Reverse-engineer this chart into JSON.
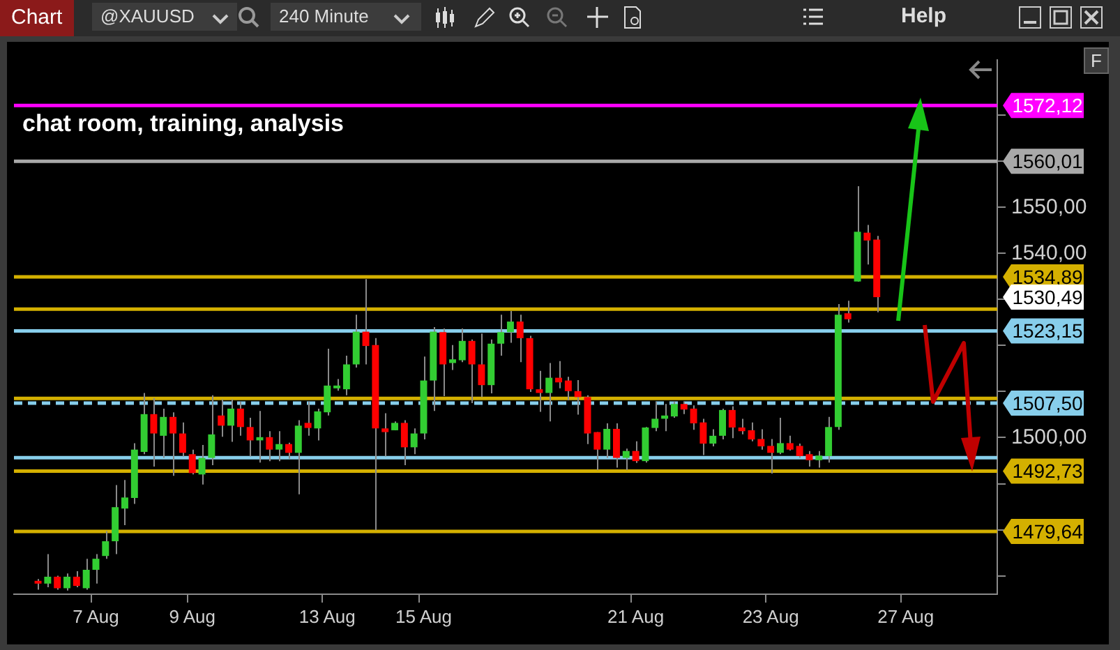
{
  "chart_data": {
    "type": "candlestick",
    "subtitle": "chat room, training, analysis",
    "categories": [
      null,
      null,
      null,
      null,
      null,
      null,
      null,
      null,
      "7 Aug",
      null,
      null,
      null,
      null,
      null,
      null,
      null,
      null,
      null,
      "9 Aug",
      null,
      null,
      null,
      null,
      null,
      null,
      null,
      null,
      null,
      null,
      null,
      null,
      null,
      "13 Aug",
      null,
      null,
      null,
      null,
      null,
      null,
      null,
      null,
      null,
      "15 Aug",
      null,
      null,
      null,
      null,
      null,
      null,
      null,
      null,
      null,
      null,
      null,
      null,
      null,
      null,
      null,
      null,
      null,
      null,
      null,
      null,
      null,
      "21 Aug",
      null,
      null,
      null,
      null,
      null,
      null,
      null,
      null,
      null,
      null,
      null,
      null,
      null,
      "23 Aug",
      null,
      null,
      null,
      null,
      null,
      null,
      null,
      null,
      null,
      null,
      null,
      null,
      null,
      "27 Aug",
      null,
      null,
      null,
      null,
      null,
      null,
      null,
      null,
      null
    ],
    "ohlc": [
      null,
      null,
      [
        1468.5,
        1469.3,
        1467,
        1468.3
      ],
      [
        1468.3,
        1474.7,
        1467.5,
        1469.8
      ],
      [
        1469.8,
        1470,
        1467,
        1467.3
      ],
      [
        1467.3,
        1470.5,
        1466.8,
        1469.8
      ],
      [
        1469.8,
        1471,
        1467.5,
        1467.8
      ],
      [
        1467.3,
        1473.7,
        1467,
        1471.3
      ],
      [
        1471.3,
        1474.7,
        1468.3,
        1473.7
      ],
      [
        1474.3,
        1479.7,
        1473.7,
        1477.5
      ],
      [
        1477.5,
        1489.7,
        1474.7,
        1484.9
      ],
      [
        1484.6,
        1490.8,
        1481,
        1487
      ],
      [
        1486.9,
        1498.8,
        1485.6,
        1497.4
      ],
      [
        1496.9,
        1509.7,
        1496.4,
        1505.1
      ],
      [
        1505.1,
        1508.6,
        1493.7,
        1500.9
      ],
      [
        1500.4,
        1506.3,
        1495.6,
        1504.5
      ],
      [
        1504.5,
        1505.5,
        1491.7,
        1500.9
      ],
      [
        1500.9,
        1503.3,
        1495.9,
        1496.7
      ],
      [
        1496.4,
        1497.4,
        1492,
        1492.3
      ],
      [
        1492,
        1498.4,
        1489.8,
        1495.6
      ],
      [
        1495.6,
        1509.2,
        1494,
        1500.7
      ],
      [
        1504.8,
        1508.3,
        1500.2,
        1502.6
      ],
      [
        1502.6,
        1508.3,
        1499.1,
        1506.3
      ],
      [
        1506.3,
        1507.8,
        1500.4,
        1502.3
      ],
      [
        1502.3,
        1504.3,
        1495.9,
        1499.4
      ],
      [
        1499.4,
        1505.8,
        1494.6,
        1500.1
      ],
      [
        1500.1,
        1501.4,
        1494.9,
        1497.4
      ],
      [
        1497.4,
        1501.4,
        1494.9,
        1498.6
      ],
      [
        1498.6,
        1498.9,
        1495.4,
        1496.7
      ],
      [
        1496.7,
        1503.8,
        1487.7,
        1502.6
      ],
      [
        1503.2,
        1507.8,
        1500.4,
        1502.1
      ],
      [
        1502,
        1506.3,
        1499.4,
        1505.7
      ],
      [
        1505.5,
        1519.3,
        1504.8,
        1511.3
      ],
      [
        1510.7,
        1512.7,
        1510.2,
        1510.8
      ],
      [
        1510.5,
        1517.8,
        1509.2,
        1515.9
      ],
      [
        1515.9,
        1526.7,
        1515.2,
        1523
      ],
      [
        1523,
        1534.4,
        1515.9,
        1519.9
      ],
      [
        1520.1,
        1521.6,
        1479.9,
        1502
      ],
      [
        1502,
        1505.3,
        1495.9,
        1501.2
      ],
      [
        1501.6,
        1503.5,
        1501.6,
        1503.2
      ],
      [
        1503.2,
        1503.8,
        1494,
        1497.9
      ],
      [
        1497.9,
        1502,
        1496.4,
        1500.9
      ],
      [
        1500.9,
        1517.6,
        1499.6,
        1512.4
      ],
      [
        1512.4,
        1524,
        1505.8,
        1523
      ],
      [
        1522.9,
        1523.7,
        1509,
        1515.9
      ],
      [
        1516.2,
        1520.1,
        1514.7,
        1517
      ],
      [
        1516.8,
        1523.7,
        1516.4,
        1521
      ],
      [
        1521,
        1521.3,
        1507.5,
        1515.9
      ],
      [
        1515.9,
        1522.6,
        1508.8,
        1511.4
      ],
      [
        1511.4,
        1521.3,
        1509.6,
        1520.4
      ],
      [
        1520.4,
        1526.7,
        1517.8,
        1522.9
      ],
      [
        1522.9,
        1527.5,
        1520.6,
        1525.2
      ],
      [
        1525.2,
        1526.7,
        1516.4,
        1521.6
      ],
      [
        1521.6,
        1522.1,
        1509.9,
        1510.5
      ],
      [
        1510.5,
        1514.5,
        1505.6,
        1509.7
      ],
      [
        1509.7,
        1516.2,
        1503.5,
        1513
      ],
      [
        1513,
        1516.6,
        1510.7,
        1512
      ],
      [
        1512.4,
        1513.2,
        1508.1,
        1510.1
      ],
      [
        1510.1,
        1512.5,
        1505,
        1508.8
      ],
      [
        1508.8,
        1509.2,
        1498.6,
        1500.9
      ],
      [
        1501.2,
        1501.2,
        1493,
        1497.4
      ],
      [
        1497.4,
        1503.1,
        1495.6,
        1501.9
      ],
      [
        1501.9,
        1503.1,
        1493.5,
        1495.6
      ],
      [
        1495.6,
        1497.6,
        1493,
        1497.1
      ],
      [
        1497.1,
        1499.2,
        1494.5,
        1494.9
      ],
      [
        1494.9,
        1502.3,
        1494.6,
        1502.2
      ],
      [
        1502.1,
        1507.8,
        1501.4,
        1504.1
      ],
      [
        1504.1,
        1507.3,
        1501.4,
        1504.8
      ],
      [
        1504.6,
        1507.8,
        1504.3,
        1507.3
      ],
      [
        1507.3,
        1507.8,
        1505.1,
        1506.1
      ],
      [
        1506.3,
        1507,
        1501.7,
        1503.1
      ],
      [
        1503.3,
        1504.1,
        1496.2,
        1498.7
      ],
      [
        1498.7,
        1501.8,
        1498.1,
        1500.4
      ],
      [
        1500.4,
        1506.3,
        1499.6,
        1506
      ],
      [
        1506,
        1506.8,
        1499.9,
        1502.2
      ],
      [
        1502.2,
        1504.1,
        1500.7,
        1501.4
      ],
      [
        1501.6,
        1503.3,
        1499.2,
        1499.6
      ],
      [
        1499.7,
        1501.8,
        1497.4,
        1498.1
      ],
      [
        1498.2,
        1499.7,
        1492.2,
        1496.7
      ],
      [
        1496.7,
        1504.3,
        1496.4,
        1498.8
      ],
      [
        1498.8,
        1500.4,
        1497.2,
        1497.4
      ],
      [
        1498.2,
        1498.7,
        1495.6,
        1496
      ],
      [
        1496.4,
        1497.1,
        1493.7,
        1495.1
      ],
      [
        1495.1,
        1497.1,
        1493.5,
        1496.1
      ],
      [
        1496,
        1504.5,
        1494.6,
        1502.3
      ],
      [
        1502.3,
        1529,
        1501.7,
        1526.7
      ],
      [
        1527,
        1529.7,
        1525,
        1525.7
      ],
      [
        1533.9,
        1554.6,
        1533.9,
        1544.7
      ],
      [
        1544.5,
        1546.2,
        1537.6,
        1542.8
      ],
      [
        1543,
        1543.8,
        1527.2,
        1530.5
      ],
      null,
      null,
      null,
      null,
      null,
      null,
      null,
      null,
      null,
      null,
      null,
      null
    ],
    "colors": [
      null,
      null,
      "#ff0000",
      "#32cd32",
      "#ff0000",
      "#32cd32",
      "#ff0000",
      "#32cd32",
      "#32cd32",
      "#32cd32",
      "#32cd32",
      "#32cd32",
      "#32cd32",
      "#32cd32",
      "#ff0000",
      "#32cd32",
      "#ff0000",
      "#ff0000",
      "#ff0000",
      "#32cd32",
      "#32cd32",
      "#ff0000",
      "#32cd32",
      "#ff0000",
      "#ff0000",
      "#32cd32",
      "#ff0000",
      "#32cd32",
      "#ff0000",
      "#32cd32",
      "#ff0000",
      "#32cd32",
      "#32cd32",
      "#32cd32",
      "#32cd32",
      "#32cd32",
      "#ff0000",
      "#ff0000",
      "#ff0000",
      "#32cd32",
      "#ff0000",
      "#32cd32",
      "#32cd32",
      "#32cd32",
      "#ff0000",
      "#32cd32",
      "#32cd32",
      "#ff0000",
      "#ff0000",
      "#32cd32",
      "#32cd32",
      "#32cd32",
      "#ff0000",
      "#ff0000",
      "#ff0000",
      "#32cd32",
      "#ff0000",
      "#ff0000",
      "#ff0000",
      "#ff0000",
      "#ff0000",
      "#32cd32",
      "#ff0000",
      "#32cd32",
      "#ff0000",
      "#32cd32",
      "#32cd32",
      "#32cd32",
      "#32cd32",
      "#ff0000",
      "#ff0000",
      "#ff0000",
      "#32cd32",
      "#32cd32",
      "#ff0000",
      "#ff0000",
      "#ff0000",
      "#ff0000",
      "#ff0000",
      "#32cd32",
      "#ff0000",
      "#ff0000",
      "#ff0000",
      "#32cd32",
      "#32cd32",
      "#32cd32",
      "#ff0000",
      "#32cd32",
      "#ff0000",
      "#ff0000",
      null,
      null,
      null,
      null,
      null,
      null,
      null,
      null,
      null,
      null,
      null,
      null
    ],
    "ylim": [
      1466,
      1582
    ],
    "yticks": [
      {
        "value": 1470,
        "label": null
      },
      {
        "value": 1480,
        "label": null
      },
      {
        "value": 1490,
        "label": null
      },
      {
        "value": 1500,
        "label": "1500,00"
      },
      {
        "value": 1510,
        "label": null
      },
      {
        "value": 1520,
        "label": null
      },
      {
        "value": 1530,
        "label": null
      },
      {
        "value": 1540,
        "label": "1540,00"
      },
      {
        "value": 1550,
        "label": "1550,00"
      },
      {
        "value": 1560,
        "label": null
      },
      {
        "value": 1570,
        "label": null
      }
    ],
    "ref_lines": [
      {
        "axis": "y",
        "value": 1572.12,
        "label": "1572,12",
        "color": "#ff00ff"
      },
      {
        "axis": "y",
        "value": 1560.01,
        "label": "1560,01",
        "color": "#a9a9a9"
      },
      {
        "axis": "y",
        "value": 1534.89,
        "label": "1534,89",
        "color": "#d4b000"
      },
      {
        "axis": "y",
        "value": 1527.9,
        "label": null,
        "color": "#d4b000"
      },
      {
        "axis": "y",
        "value": 1523.15,
        "label": "1523,15",
        "color": "#87ceeb"
      },
      {
        "axis": "y",
        "value": 1508.5,
        "label": null,
        "color": "#d4b000"
      },
      {
        "axis": "y",
        "value": 1507.5,
        "label": "1507,50",
        "color": "#87ceeb",
        "line_style": "dashed"
      },
      {
        "axis": "y",
        "value": 1495.64,
        "label": null,
        "color": "#87ceeb"
      },
      {
        "axis": "y",
        "value": 1492.73,
        "label": "1492,73",
        "color": "#d4b000"
      },
      {
        "axis": "y",
        "value": 1479.64,
        "label": "1479,64",
        "color": "#d4b000"
      }
    ],
    "annotations": [
      "Chart",
      "@XAUUSD",
      "240 Minute",
      "Help",
      "F",
      "1530,49"
    ],
    "legend": false
  }
}
